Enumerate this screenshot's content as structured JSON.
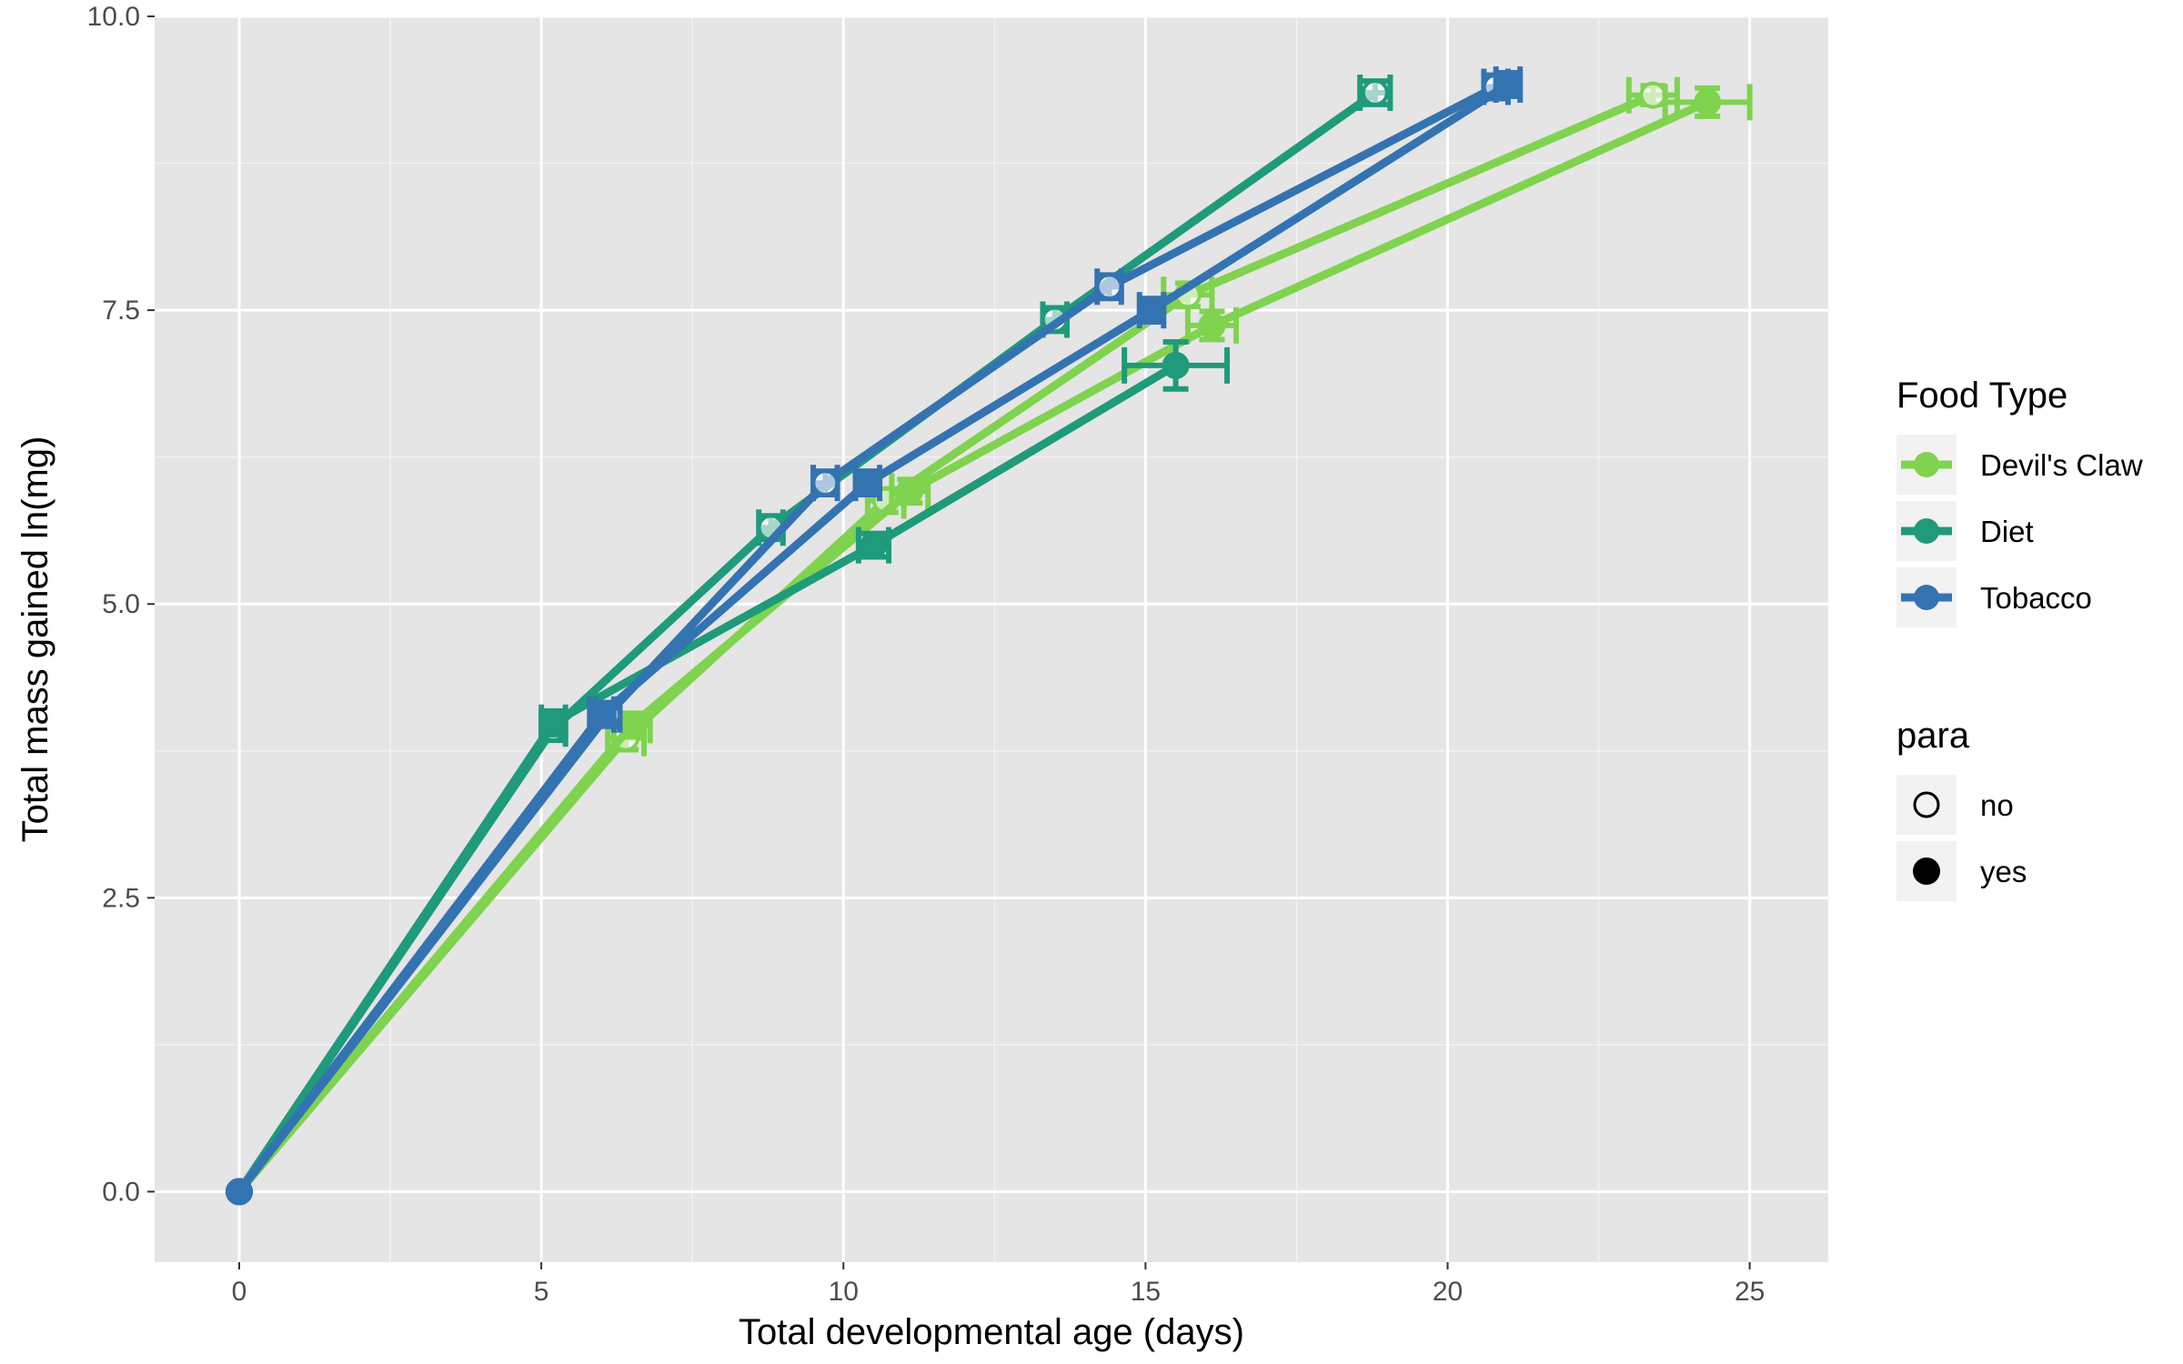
{
  "chart_data": {
    "type": "line",
    "xlabel": "Total developmental age (days)",
    "ylabel": "Total mass gained ln(mg)",
    "xlim": [
      -1.4,
      26.3
    ],
    "ylim": [
      -0.6,
      10.0
    ],
    "xticks": [
      0,
      5,
      10,
      15,
      20,
      25
    ],
    "xtick_labels": [
      "0",
      "5",
      "10",
      "15",
      "20",
      "25"
    ],
    "yticks": [
      0,
      2.5,
      5,
      7.5,
      10
    ],
    "ytick_labels": [
      "0.0",
      "2.5",
      "5.0",
      "7.5",
      "10.0"
    ],
    "grid": true,
    "legend_position": "right",
    "legends": [
      {
        "title": "Food Type",
        "entries": [
          {
            "label": "Devil's Claw",
            "color": "#7fd34e"
          },
          {
            "label": "Diet",
            "color": "#1f9a7a"
          },
          {
            "label": "Tobacco",
            "color": "#3473b1"
          }
        ]
      },
      {
        "title": "para",
        "entries": [
          {
            "label": "no",
            "shape": "open-circle"
          },
          {
            "label": "yes",
            "shape": "filled-circle"
          }
        ]
      }
    ],
    "series": [
      {
        "food": "Devil's Claw",
        "para": "no",
        "color": "#7fd34e",
        "points": [
          {
            "x": 0,
            "y": 0
          },
          {
            "x": 6.4,
            "y": 3.86,
            "xerr": 0.3,
            "yerr": 0.1
          },
          {
            "x": 10.7,
            "y": 5.88,
            "xerr": 0.3,
            "yerr": 0.1
          },
          {
            "x": 15.7,
            "y": 7.63,
            "xerr": 0.4,
            "yerr": 0.1
          },
          {
            "x": 23.4,
            "y": 9.33,
            "xerr": 0.4,
            "yerr": 0.08
          }
        ]
      },
      {
        "food": "Devil's Claw",
        "para": "yes",
        "color": "#7fd34e",
        "points": [
          {
            "x": 0,
            "y": 0
          },
          {
            "x": 6.5,
            "y": 3.97,
            "xerr": 0.3,
            "yerr": 0.1
          },
          {
            "x": 11.1,
            "y": 5.96,
            "xerr": 0.3,
            "yerr": 0.1
          },
          {
            "x": 16.1,
            "y": 7.37,
            "xerr": 0.4,
            "yerr": 0.12
          },
          {
            "x": 24.3,
            "y": 9.27,
            "xerr": 0.7,
            "yerr": 0.12
          }
        ]
      },
      {
        "food": "Diet",
        "para": "no",
        "color": "#1f9a7a",
        "points": [
          {
            "x": 0,
            "y": 0
          },
          {
            "x": 5.2,
            "y": 3.94,
            "xerr": 0.2,
            "yerr": 0.1
          },
          {
            "x": 8.8,
            "y": 5.65,
            "xerr": 0.2,
            "yerr": 0.1
          },
          {
            "x": 13.5,
            "y": 7.42,
            "xerr": 0.2,
            "yerr": 0.1
          },
          {
            "x": 18.8,
            "y": 9.35,
            "xerr": 0.25,
            "yerr": 0.1
          }
        ]
      },
      {
        "food": "Diet",
        "para": "yes",
        "color": "#1f9a7a",
        "points": [
          {
            "x": 0,
            "y": 0
          },
          {
            "x": 5.2,
            "y": 3.99,
            "xerr": 0.2,
            "yerr": 0.1
          },
          {
            "x": 10.5,
            "y": 5.5,
            "xerr": 0.25,
            "yerr": 0.1
          },
          {
            "x": 15.5,
            "y": 7.03,
            "xerr": 0.85,
            "yerr": 0.2
          }
        ]
      },
      {
        "food": "Tobacco",
        "para": "no",
        "color": "#3473b1",
        "points": [
          {
            "x": 0,
            "y": 0
          },
          {
            "x": 6.1,
            "y": 4.06,
            "xerr": 0.2,
            "yerr": 0.1
          },
          {
            "x": 9.7,
            "y": 6.03,
            "xerr": 0.2,
            "yerr": 0.1
          },
          {
            "x": 14.4,
            "y": 7.7,
            "xerr": 0.2,
            "yerr": 0.1
          },
          {
            "x": 20.8,
            "y": 9.4,
            "xerr": 0.2,
            "yerr": 0.1
          }
        ]
      },
      {
        "food": "Tobacco",
        "para": "yes",
        "color": "#3473b1",
        "points": [
          {
            "x": 0,
            "y": 0
          },
          {
            "x": 6.0,
            "y": 4.06,
            "xerr": 0.2,
            "yerr": 0.1
          },
          {
            "x": 10.4,
            "y": 6.03,
            "xerr": 0.2,
            "yerr": 0.1
          },
          {
            "x": 15.1,
            "y": 7.5,
            "xerr": 0.2,
            "yerr": 0.1
          },
          {
            "x": 21.0,
            "y": 9.42,
            "xerr": 0.2,
            "yerr": 0.1
          }
        ]
      }
    ]
  }
}
